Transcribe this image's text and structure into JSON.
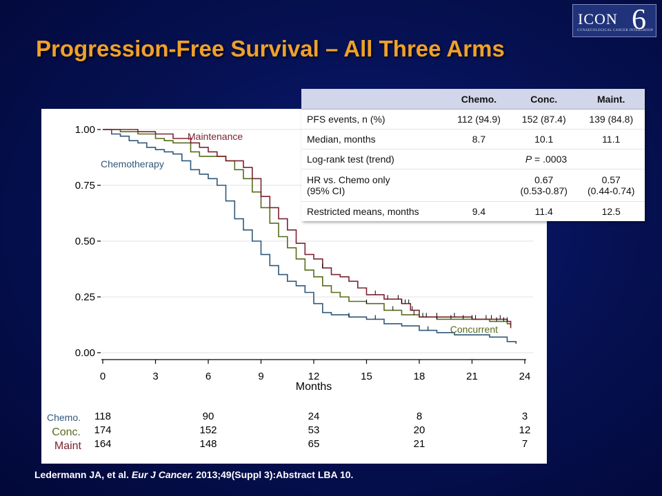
{
  "slide": {
    "title": "Progression-Free Survival – All Three Arms",
    "logo": {
      "text": "ICON",
      "number": "6",
      "subtitle": "Gynaecological Cancer Intergroup"
    },
    "citation": {
      "authors": "Ledermann JA, et al.",
      "journal": "Eur J Cancer.",
      "rest": "2013;49(Suppl 3):Abstract LBA 10."
    }
  },
  "colors": {
    "chemotherapy": "#2f5778",
    "concurrent": "#556b18",
    "maintenance": "#7b2230",
    "title": "#f0a128"
  },
  "stats_table": {
    "headers": [
      "",
      "Chemo.",
      "Conc.",
      "Maint."
    ],
    "rows": [
      {
        "label": "PFS events, n (%)",
        "chemo": "112 (94.9)",
        "conc": "152 (87.4)",
        "maint": "139 (84.8)"
      },
      {
        "label": "Median, months",
        "chemo": "8.7",
        "conc": "10.1",
        "maint": "11.1"
      },
      {
        "label": "Log-rank test (trend)",
        "p_prefix": "P",
        "p_value": " = .0003"
      },
      {
        "label_1": "HR vs. Chemo only",
        "label_2": "(95% CI)",
        "chemo": "",
        "conc_1": "0.67",
        "conc_2": "(0.53-0.87)",
        "maint_1": "0.57",
        "maint_2": "(0.44-0.74)"
      },
      {
        "label": "Restricted means, months",
        "chemo": "9.4",
        "conc": "11.4",
        "maint": "12.5"
      }
    ]
  },
  "chart_data": {
    "type": "line",
    "xlabel": "Months",
    "ylabel": "",
    "xlim": [
      0,
      24
    ],
    "ylim": [
      0,
      1
    ],
    "x_ticks": [
      0,
      3,
      6,
      9,
      12,
      15,
      18,
      21,
      24
    ],
    "y_ticks": [
      "0.00",
      "0.25",
      "0.50",
      "0.75",
      "1.00"
    ],
    "grid": "horizontal",
    "series": [
      {
        "name": "Chemotherapy",
        "color": "#2f5778",
        "points": [
          [
            0,
            1.0
          ],
          [
            0.5,
            0.98
          ],
          [
            1,
            0.97
          ],
          [
            1.5,
            0.95
          ],
          [
            2,
            0.94
          ],
          [
            2.5,
            0.92
          ],
          [
            3,
            0.91
          ],
          [
            3.5,
            0.9
          ],
          [
            4,
            0.89
          ],
          [
            4.5,
            0.86
          ],
          [
            5,
            0.82
          ],
          [
            5.5,
            0.8
          ],
          [
            6,
            0.78
          ],
          [
            6.5,
            0.75
          ],
          [
            7,
            0.68
          ],
          [
            7.5,
            0.6
          ],
          [
            8,
            0.55
          ],
          [
            8.5,
            0.5
          ],
          [
            9,
            0.44
          ],
          [
            9.5,
            0.39
          ],
          [
            10,
            0.35
          ],
          [
            10.5,
            0.32
          ],
          [
            11,
            0.3
          ],
          [
            11.5,
            0.27
          ],
          [
            12,
            0.22
          ],
          [
            12.5,
            0.18
          ],
          [
            13,
            0.17
          ],
          [
            14,
            0.16
          ],
          [
            15,
            0.15
          ],
          [
            16,
            0.13
          ],
          [
            17,
            0.12
          ],
          [
            18,
            0.1
          ],
          [
            19,
            0.09
          ],
          [
            20,
            0.08
          ],
          [
            21,
            0.08
          ],
          [
            22,
            0.07
          ],
          [
            23,
            0.05
          ],
          [
            23.5,
            0.04
          ]
        ]
      },
      {
        "name": "Concurrent",
        "color": "#556b18",
        "points": [
          [
            0,
            1.0
          ],
          [
            1,
            0.99
          ],
          [
            2,
            0.98
          ],
          [
            3,
            0.96
          ],
          [
            3.5,
            0.95
          ],
          [
            4,
            0.94
          ],
          [
            5,
            0.9
          ],
          [
            5.5,
            0.88
          ],
          [
            6,
            0.88
          ],
          [
            7,
            0.86
          ],
          [
            7.5,
            0.82
          ],
          [
            8,
            0.78
          ],
          [
            8.5,
            0.72
          ],
          [
            9,
            0.65
          ],
          [
            9.5,
            0.58
          ],
          [
            10,
            0.52
          ],
          [
            10.5,
            0.47
          ],
          [
            11,
            0.42
          ],
          [
            11.5,
            0.37
          ],
          [
            12,
            0.34
          ],
          [
            12.5,
            0.3
          ],
          [
            13,
            0.27
          ],
          [
            13.5,
            0.25
          ],
          [
            14,
            0.23
          ],
          [
            15,
            0.22
          ],
          [
            16,
            0.19
          ],
          [
            17,
            0.17
          ],
          [
            18,
            0.16
          ],
          [
            19,
            0.15
          ],
          [
            20,
            0.15
          ],
          [
            21,
            0.15
          ],
          [
            22,
            0.14
          ],
          [
            23,
            0.13
          ],
          [
            23.2,
            0.12
          ]
        ]
      },
      {
        "name": "Maintenance",
        "color": "#7b2230",
        "points": [
          [
            0,
            1.0
          ],
          [
            1,
            1.0
          ],
          [
            2,
            0.99
          ],
          [
            3,
            0.98
          ],
          [
            4,
            0.96
          ],
          [
            5,
            0.94
          ],
          [
            5.5,
            0.92
          ],
          [
            6,
            0.9
          ],
          [
            6.5,
            0.88
          ],
          [
            7,
            0.86
          ],
          [
            8,
            0.83
          ],
          [
            8.5,
            0.78
          ],
          [
            9,
            0.7
          ],
          [
            9.5,
            0.65
          ],
          [
            10,
            0.6
          ],
          [
            10.5,
            0.55
          ],
          [
            11,
            0.49
          ],
          [
            11.5,
            0.44
          ],
          [
            12,
            0.42
          ],
          [
            12.5,
            0.38
          ],
          [
            13,
            0.35
          ],
          [
            13.5,
            0.34
          ],
          [
            14,
            0.32
          ],
          [
            14.5,
            0.29
          ],
          [
            15,
            0.26
          ],
          [
            16,
            0.24
          ],
          [
            17,
            0.22
          ],
          [
            17.5,
            0.19
          ],
          [
            18,
            0.16
          ],
          [
            19,
            0.16
          ],
          [
            20,
            0.16
          ],
          [
            21,
            0.15
          ],
          [
            22,
            0.15
          ],
          [
            23,
            0.14
          ],
          [
            23.2,
            0.11
          ]
        ]
      }
    ],
    "censor_marks": [
      {
        "series": "Chemotherapy",
        "x": [
          14.0,
          15.5,
          18.5
        ]
      },
      {
        "series": "Concurrent",
        "x": [
          15.0,
          16.5,
          17.7,
          18.2,
          19.0,
          19.8,
          20.5,
          21.0,
          21.8,
          22.4,
          22.8
        ]
      },
      {
        "series": "Maintenance",
        "x": [
          12.5,
          15.5,
          16.2,
          16.8,
          17.0,
          17.2,
          17.4,
          17.6,
          18.4,
          19.0,
          20.0,
          21.2,
          22.1,
          22.6,
          23.0
        ]
      }
    ],
    "annotations": [
      {
        "text": "Maintenance",
        "series": "Maintenance"
      },
      {
        "text": "Chemotherapy",
        "series": "Chemotherapy"
      },
      {
        "text": "Concurrent",
        "series": "Concurrent"
      }
    ],
    "risk_table": {
      "x": [
        0,
        6,
        12,
        18,
        24
      ],
      "rows": [
        {
          "label": "Chemo.",
          "values": [
            "118",
            "90",
            "24",
            "8",
            "3"
          ],
          "color": "#2f5778"
        },
        {
          "label": "Conc.",
          "values": [
            "174",
            "152",
            "53",
            "20",
            "12"
          ],
          "color": "#556b18"
        },
        {
          "label": "Maint",
          "values": [
            "164",
            "148",
            "65",
            "21",
            "7"
          ],
          "color": "#7b2230"
        }
      ]
    }
  }
}
